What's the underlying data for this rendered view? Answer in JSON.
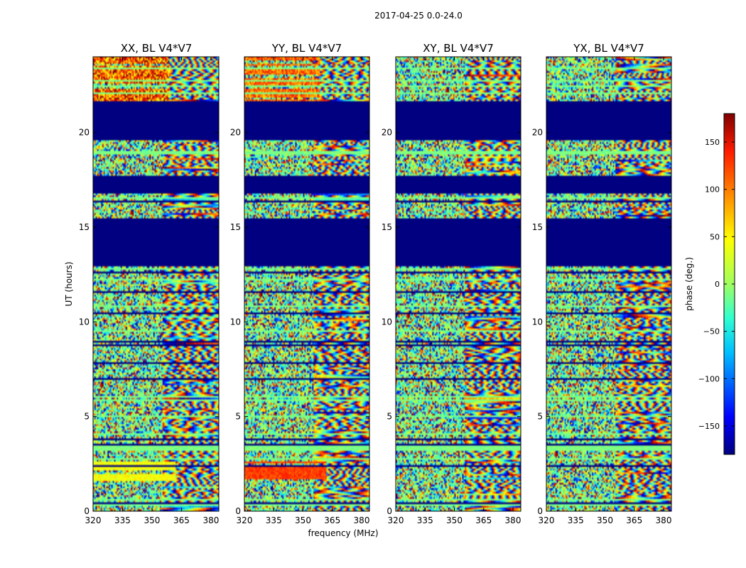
{
  "chart_data": {
    "type": "heatmap",
    "title": "2017-04-25 0.0-24.0",
    "xlabel": "frequency (MHz)",
    "ylabel": "UT (hours)",
    "xlim": [
      320,
      384
    ],
    "ylim": [
      0,
      24
    ],
    "xticks": [
      "320",
      "335",
      "350",
      "365",
      "380"
    ],
    "yticks": [
      "0",
      "5",
      "10",
      "15",
      "20"
    ],
    "colorbar": {
      "label": "phase (deg.)",
      "range": [
        -180,
        180
      ],
      "ticks": [
        "150",
        "100",
        "50",
        "0",
        "−50",
        "−100",
        "−150"
      ]
    },
    "colormap": {
      "stops": [
        "#000080",
        "#0000ff",
        "#00bfff",
        "#30ffd0",
        "#9fff60",
        "#ffff00",
        "#ff8c00",
        "#ff1a00",
        "#800000"
      ],
      "masked_color": "#000080"
    },
    "masked_hours": [
      [
        13.0,
        15.5
      ],
      [
        16.8,
        17.7
      ],
      [
        19.6,
        21.7
      ]
    ],
    "panels": [
      {
        "name": "XX",
        "title": "XX, BL V4*V7"
      },
      {
        "name": "YY",
        "title": "YY, BL V4*V7"
      },
      {
        "name": "XY",
        "title": "XY, BL V4*V7"
      },
      {
        "name": "YX",
        "title": "YX, BL V4*V7"
      }
    ]
  }
}
